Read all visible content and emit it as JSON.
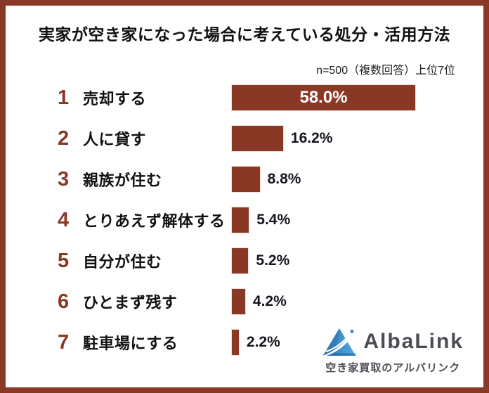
{
  "title": "実家が空き家になった場合に考えている処分・活用方法",
  "note": "n=500（複数回答）上位7位",
  "chart_data": {
    "type": "bar",
    "orientation": "horizontal",
    "title": "実家が空き家になった場合に考えている処分・活用方法",
    "subtitle": "n=500（複数回答）上位7位",
    "ranks": [
      "1",
      "2",
      "3",
      "4",
      "5",
      "6",
      "7"
    ],
    "categories": [
      "売却する",
      "人に貸す",
      "親族が住む",
      "とりあえず解体する",
      "自分が住む",
      "ひとまず残す",
      "駐車場にする"
    ],
    "values": [
      58.0,
      16.2,
      8.8,
      5.4,
      5.2,
      4.2,
      2.2
    ],
    "value_labels": [
      "58.0%",
      "16.2%",
      "8.8%",
      "5.4%",
      "5.2%",
      "4.2%",
      "2.2%"
    ],
    "xlim": [
      0,
      60
    ],
    "grid": false,
    "legend": false,
    "data_labels": "first bar inside white, others outside right in black"
  },
  "colors": {
    "bar": "#8a3826",
    "frame_border": "#8a3826",
    "rank_number": "#8a3826",
    "text": "#111111",
    "value_inside": "#ffffff",
    "value_outside": "#15151f",
    "logo_text": "#4c4c55",
    "logo_blue_dark": "#1b5d9e",
    "logo_blue_mid": "#3a7fc1",
    "logo_blue_light": "#55a8dc"
  },
  "logo": {
    "brand": "AlbaLink",
    "tagline": "空き家買取のアルバリンク",
    "icon": "albalink-triangle-logo"
  }
}
